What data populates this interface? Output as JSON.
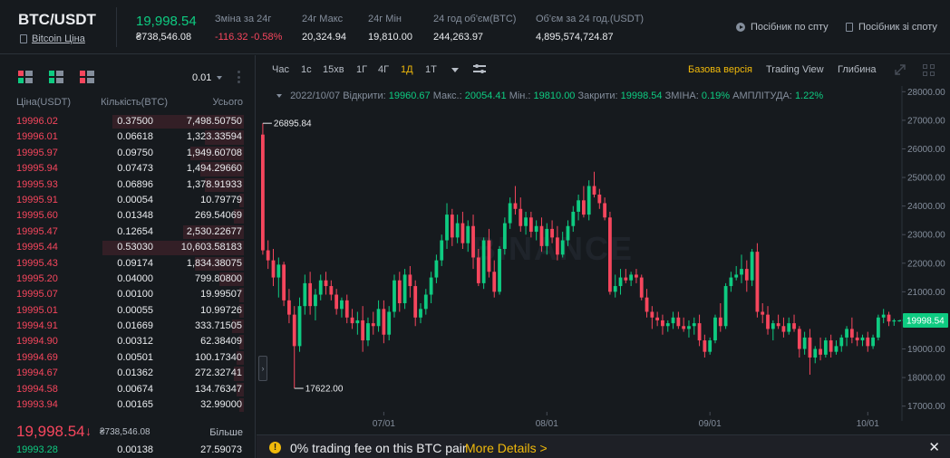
{
  "header": {
    "pair": "BTC/USDT",
    "pair_link": "Bitcoin Ціна",
    "last_price": "19,998.54",
    "last_price_sub": "₴738,546.08",
    "stats": [
      {
        "label": "Зміна за 24г",
        "value": "-116.32 -0.58%",
        "negative": true
      },
      {
        "label": "24г Макс",
        "value": "20,324.94",
        "negative": false
      },
      {
        "label": "24г Мін",
        "value": "19,810.00",
        "negative": false
      },
      {
        "label": "24 год об'єм(BTC)",
        "value": "244,263.97",
        "negative": false
      },
      {
        "label": "Об'єм за 24 год.(USDT)",
        "value": "4,895,574,724.87",
        "negative": false
      }
    ],
    "guide_spot": "Посібник по спту",
    "guide_spot2": "Посібник зі споту"
  },
  "orderbook": {
    "precision": "0.01",
    "columns": [
      "Ціна(USDT)",
      "Кількість(BTC)",
      "Усього"
    ],
    "asks": [
      {
        "price": "19996.02",
        "amount": "0.37500",
        "total": "7,498.50750",
        "depth": 0.54
      },
      {
        "price": "19996.01",
        "amount": "0.06618",
        "total": "1,323.33594",
        "depth": 0.16
      },
      {
        "price": "19995.97",
        "amount": "0.09750",
        "total": "1,949.60708",
        "depth": 0.22
      },
      {
        "price": "19995.94",
        "amount": "0.07473",
        "total": "1,494.29660",
        "depth": 0.18
      },
      {
        "price": "19995.93",
        "amount": "0.06896",
        "total": "1,378.91933",
        "depth": 0.16
      },
      {
        "price": "19995.91",
        "amount": "0.00054",
        "total": "10.79779",
        "depth": 0.02
      },
      {
        "price": "19995.60",
        "amount": "0.01348",
        "total": "269.54069",
        "depth": 0.04
      },
      {
        "price": "19995.47",
        "amount": "0.12654",
        "total": "2,530.22677",
        "depth": 0.25
      },
      {
        "price": "19995.44",
        "amount": "0.53030",
        "total": "10,603.58183",
        "depth": 0.58
      },
      {
        "price": "19995.43",
        "amount": "0.09174",
        "total": "1,834.38075",
        "depth": 0.2
      },
      {
        "price": "19995.20",
        "amount": "0.04000",
        "total": "799.80800",
        "depth": 0.1
      },
      {
        "price": "19995.07",
        "amount": "0.00100",
        "total": "19.99507",
        "depth": 0.02
      },
      {
        "price": "19995.01",
        "amount": "0.00055",
        "total": "10.99726",
        "depth": 0.02
      },
      {
        "price": "19994.91",
        "amount": "0.01669",
        "total": "333.71505",
        "depth": 0.05
      },
      {
        "price": "19994.90",
        "amount": "0.00312",
        "total": "62.38409",
        "depth": 0.02
      },
      {
        "price": "19994.69",
        "amount": "0.00501",
        "total": "100.17340",
        "depth": 0.03
      },
      {
        "price": "19994.67",
        "amount": "0.01362",
        "total": "272.32741",
        "depth": 0.04
      },
      {
        "price": "19994.58",
        "amount": "0.00674",
        "total": "134.76347",
        "depth": 0.03
      },
      {
        "price": "19993.94",
        "amount": "0.00165",
        "total": "32.99000",
        "depth": 0.02
      }
    ],
    "mid_price": "19,998.54",
    "mid_arrow": "↓",
    "mid_sub": "₴738,546.08",
    "more_label": "Більше",
    "first_bid": {
      "price": "19993.28",
      "amount": "0.00138",
      "total": "27.59073"
    }
  },
  "toolbar": {
    "timeframes": [
      "Час",
      "1с",
      "15хв",
      "1Г",
      "4Г",
      "1Д",
      "1Т"
    ],
    "active_timeframe": "1Д",
    "views": [
      "Базова версія",
      "Trading View",
      "Глибина"
    ],
    "active_view": "Базова версія"
  },
  "ohlc": {
    "date": "2022/10/07",
    "open_label": "Відкрити:",
    "open": "19960.67",
    "high_label": "Макс.:",
    "high": "20054.41",
    "low_label": "Мін.:",
    "low": "19810.00",
    "close_label": "Закрити:",
    "close": "19998.54",
    "change_label": "ЗМІНА:",
    "change": "0.19%",
    "amp_label": "АМПЛІТУДА:",
    "amp": "1.22%"
  },
  "chart_data": {
    "type": "candlestick",
    "y_ticks": [
      "28000.00",
      "27000.00",
      "26000.00",
      "25000.00",
      "24000.00",
      "23000.00",
      "22000.00",
      "21000.00",
      "20000.00",
      "19000.00",
      "18000.00",
      "17000.00"
    ],
    "ylim": [
      16800,
      28200
    ],
    "x_ticks": [
      {
        "label": "07/01",
        "index": 23
      },
      {
        "label": "08/01",
        "index": 54
      },
      {
        "label": "09/01",
        "index": 85
      },
      {
        "label": "10/01",
        "index": 115
      }
    ],
    "candle_count": 122,
    "current_price": "19998.54",
    "max_label": "26895.84",
    "max_index": 0,
    "min_label": "17622.00",
    "min_index": 6,
    "watermark": "BINANCE",
    "bullish_color": "#0ecb81",
    "bearish_color": "#f6465d",
    "candles": [
      [
        26500,
        26895,
        22300,
        22450
      ],
      [
        22450,
        22800,
        21800,
        22100
      ],
      [
        22100,
        22500,
        21200,
        21500
      ],
      [
        21500,
        22200,
        20800,
        21950
      ],
      [
        21950,
        22050,
        20500,
        20700
      ],
      [
        20700,
        21100,
        19900,
        20200
      ],
      [
        20200,
        20500,
        17622,
        19100
      ],
      [
        19100,
        20800,
        18900,
        20500
      ],
      [
        20500,
        21600,
        20200,
        21300
      ],
      [
        21300,
        21700,
        20200,
        20500
      ],
      [
        20500,
        21100,
        20000,
        20900
      ],
      [
        20900,
        21600,
        20700,
        21400
      ],
      [
        21400,
        21700,
        20900,
        21200
      ],
      [
        21200,
        21400,
        20700,
        20900
      ],
      [
        20900,
        21100,
        20200,
        20400
      ],
      [
        20400,
        20800,
        20100,
        20700
      ],
      [
        20700,
        20900,
        19900,
        20100
      ],
      [
        20100,
        20400,
        19700,
        19900
      ],
      [
        19900,
        20300,
        19500,
        20000
      ],
      [
        20000,
        20500,
        18900,
        19300
      ],
      [
        19300,
        20100,
        19100,
        19900
      ],
      [
        19900,
        20300,
        19500,
        19800
      ],
      [
        19800,
        20700,
        19600,
        20400
      ],
      [
        20400,
        20700,
        19200,
        19500
      ],
      [
        19500,
        20500,
        19300,
        20300
      ],
      [
        20300,
        21600,
        20100,
        21400
      ],
      [
        21400,
        21700,
        20300,
        20600
      ],
      [
        20600,
        21800,
        20400,
        21600
      ],
      [
        21600,
        21900,
        20800,
        21200
      ],
      [
        21200,
        21400,
        19800,
        20100
      ],
      [
        20100,
        20600,
        19900,
        20400
      ],
      [
        20400,
        21100,
        20200,
        20900
      ],
      [
        20900,
        21700,
        20600,
        21500
      ],
      [
        21500,
        22300,
        21300,
        22100
      ],
      [
        22100,
        23000,
        21900,
        22800
      ],
      [
        22800,
        24100,
        22500,
        23700
      ],
      [
        23700,
        23900,
        22600,
        22900
      ],
      [
        22900,
        23700,
        22700,
        23400
      ],
      [
        23400,
        23800,
        22500,
        22700
      ],
      [
        22700,
        23500,
        22400,
        23300
      ],
      [
        23300,
        23700,
        21800,
        22200
      ],
      [
        22200,
        22500,
        21200,
        21300
      ],
      [
        21300,
        22900,
        21100,
        22800
      ],
      [
        22800,
        23200,
        21500,
        21700
      ],
      [
        21700,
        22100,
        20800,
        21000
      ],
      [
        21000,
        22600,
        20900,
        22500
      ],
      [
        22500,
        23600,
        22300,
        23400
      ],
      [
        23400,
        24300,
        23200,
        24100
      ],
      [
        24100,
        24700,
        23700,
        23900
      ],
      [
        23900,
        24300,
        23100,
        23300
      ],
      [
        23300,
        23800,
        23000,
        23600
      ],
      [
        23600,
        23800,
        22900,
        23100
      ],
      [
        23100,
        23500,
        22800,
        23300
      ],
      [
        23300,
        23600,
        22400,
        22600
      ],
      [
        22600,
        23400,
        22300,
        23200
      ],
      [
        23200,
        23500,
        22700,
        22900
      ],
      [
        22900,
        23300,
        22100,
        22300
      ],
      [
        22300,
        23100,
        22200,
        22800
      ],
      [
        22800,
        23500,
        22600,
        23300
      ],
      [
        23300,
        24000,
        23100,
        23800
      ],
      [
        23800,
        24400,
        23500,
        24200
      ],
      [
        24200,
        24700,
        23600,
        23700
      ],
      [
        23700,
        24900,
        23500,
        24700
      ],
      [
        24700,
        25200,
        24300,
        24400
      ],
      [
        24400,
        24600,
        23900,
        24100
      ],
      [
        24100,
        24300,
        23500,
        23600
      ],
      [
        23600,
        23800,
        20900,
        21000
      ],
      [
        21000,
        21600,
        20800,
        21200
      ],
      [
        21200,
        21800,
        20900,
        21500
      ],
      [
        21500,
        21800,
        21300,
        21400
      ],
      [
        21400,
        21700,
        21200,
        21600
      ],
      [
        21600,
        21800,
        21300,
        21500
      ],
      [
        21500,
        21600,
        20700,
        20800
      ],
      [
        20800,
        21100,
        20100,
        20300
      ],
      [
        20300,
        20500,
        19700,
        20100
      ],
      [
        20100,
        20300,
        19800,
        20000
      ],
      [
        20000,
        20200,
        19500,
        19800
      ],
      [
        19800,
        20000,
        19600,
        19900
      ],
      [
        19900,
        20300,
        19700,
        20100
      ],
      [
        20100,
        20300,
        19700,
        19800
      ],
      [
        19800,
        20100,
        19600,
        19700
      ],
      [
        19700,
        20000,
        19400,
        19800
      ],
      [
        19800,
        20100,
        19500,
        19900
      ],
      [
        19900,
        20200,
        19100,
        19300
      ],
      [
        19300,
        19500,
        18700,
        18900
      ],
      [
        18900,
        19400,
        18800,
        19300
      ],
      [
        19300,
        20200,
        19200,
        20100
      ],
      [
        20100,
        20600,
        19600,
        19800
      ],
      [
        19800,
        21300,
        19700,
        21200
      ],
      [
        21200,
        21700,
        21000,
        21500
      ],
      [
        21500,
        21900,
        21400,
        21600
      ],
      [
        21600,
        22300,
        21300,
        21800
      ],
      [
        21800,
        22100,
        21000,
        21400
      ],
      [
        21400,
        22500,
        21200,
        22400
      ],
      [
        22400,
        22700,
        20100,
        20300
      ],
      [
        20300,
        20600,
        19900,
        20200
      ],
      [
        20200,
        20500,
        19500,
        19700
      ],
      [
        19700,
        20000,
        19300,
        19900
      ],
      [
        19900,
        20200,
        19700,
        19800
      ],
      [
        19800,
        20100,
        19400,
        19600
      ],
      [
        19600,
        20100,
        19500,
        19900
      ],
      [
        19900,
        20200,
        19600,
        19700
      ],
      [
        19700,
        19800,
        18700,
        19000
      ],
      [
        19000,
        19600,
        18800,
        19400
      ],
      [
        19400,
        19700,
        18100,
        18700
      ],
      [
        18700,
        19100,
        18500,
        19000
      ],
      [
        19000,
        19400,
        18600,
        18800
      ],
      [
        18800,
        19400,
        18700,
        19300
      ],
      [
        19300,
        19500,
        18700,
        18900
      ],
      [
        18900,
        19300,
        18800,
        19100
      ],
      [
        19100,
        19500,
        18900,
        19400
      ],
      [
        19400,
        19800,
        19100,
        19700
      ],
      [
        19700,
        20100,
        19200,
        19400
      ],
      [
        19400,
        19600,
        19100,
        19300
      ],
      [
        19300,
        19500,
        19100,
        19400
      ],
      [
        19400,
        19600,
        18900,
        19100
      ],
      [
        19100,
        19500,
        19000,
        19400
      ],
      [
        19400,
        20200,
        19300,
        20100
      ],
      [
        20100,
        20400,
        19900,
        20200
      ],
      [
        20200,
        20300,
        19800,
        19960
      ],
      [
        19960,
        20054,
        19810,
        19998
      ],
      [
        19998,
        20010,
        19950,
        19998
      ]
    ]
  },
  "promo": {
    "message": "0% trading fee on this BTC pair",
    "link": "More Details >",
    "close": "✕"
  }
}
